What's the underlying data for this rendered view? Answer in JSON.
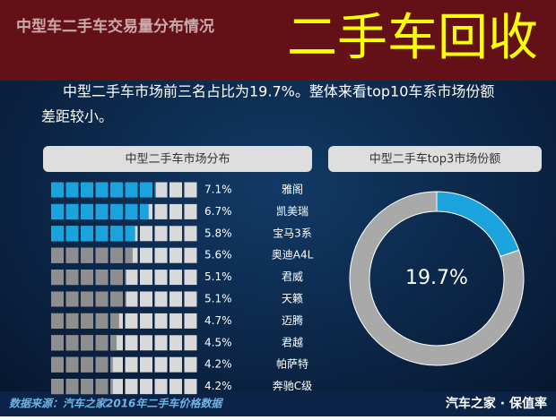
{
  "header": {
    "title": "中型车二手车交易量分布情况",
    "overlay": "二手车回收"
  },
  "subtitle": [
    "中型二手车市场前三名占比为19.7%。整体来看top10车系市场份额",
    "差距较小。"
  ],
  "footer": {
    "source": "数据来源：汽车之家2016年二手车价格数据",
    "brand": "汽车之家 · 保值率"
  },
  "chart_data": [
    {
      "type": "waffle",
      "title": "中型二手车市场分布",
      "categories": [
        "雅阁",
        "凯美瑞",
        "宝马3系",
        "奥迪A4L",
        "君威",
        "天籁",
        "迈腾",
        "君越",
        "帕萨特",
        "奔驰C级"
      ],
      "values": [
        7.1,
        6.7,
        5.8,
        5.6,
        5.1,
        5.1,
        4.7,
        4.5,
        4.2,
        4.2
      ],
      "value_labels": [
        "7.1%",
        "6.7%",
        "5.8%",
        "5.6%",
        "5.1%",
        "5.1%",
        "4.7%",
        "4.5%",
        "4.2%",
        "4.2%"
      ],
      "colors": [
        "#1ba3dd",
        "#1ba3dd",
        "#1ba3dd",
        "#8e8e8e",
        "#8e8e8e",
        "#8e8e8e",
        "#8e8e8e",
        "#8e8e8e",
        "#8e8e8e",
        "#8e8e8e"
      ],
      "xlim": [
        0,
        10
      ],
      "empty_color": "#d9d9d9"
    },
    {
      "type": "pie",
      "title": "中型二手车top3市场份额",
      "values": [
        19.7,
        80.3
      ],
      "value_labels": [
        "19.7%",
        null
      ],
      "colors": [
        "#1ba3dd",
        "#a9a9a9"
      ]
    }
  ]
}
